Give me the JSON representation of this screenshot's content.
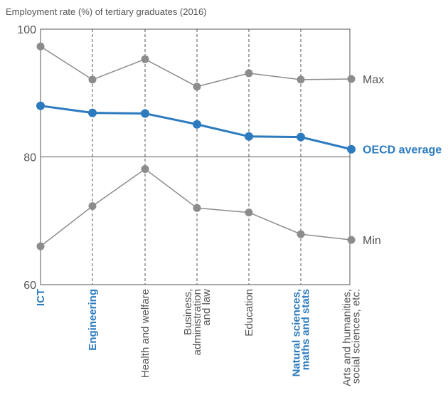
{
  "chart_data": {
    "type": "line",
    "title": "Employment rate (%) of tertiary graduates (2016)",
    "ylim": [
      60,
      100
    ],
    "yticks": [
      60,
      80,
      100
    ],
    "categories": [
      {
        "lines": [
          "ICT"
        ],
        "highlight": true
      },
      {
        "lines": [
          "Engineering"
        ],
        "highlight": true
      },
      {
        "lines": [
          "Health and welfare"
        ],
        "highlight": false
      },
      {
        "lines": [
          "Business,",
          "administration",
          "and law"
        ],
        "highlight": false
      },
      {
        "lines": [
          "Education"
        ],
        "highlight": false
      },
      {
        "lines": [
          "Natural sciences,",
          "maths and stats"
        ],
        "highlight": true
      },
      {
        "lines": [
          "Arts and humanities,",
          "social sciences, etc."
        ],
        "highlight": false
      }
    ],
    "series": [
      {
        "name": "Max",
        "color": "#8c8c8c",
        "highlight": false,
        "values": [
          97.3,
          92.1,
          95.3,
          91.0,
          93.1,
          92.1,
          92.2
        ]
      },
      {
        "name": "OECD average",
        "color": "#2c7bbf",
        "highlight": true,
        "values": [
          88.0,
          86.9,
          86.8,
          85.1,
          83.2,
          83.1,
          81.2
        ]
      },
      {
        "name": "Min",
        "color": "#8c8c8c",
        "highlight": false,
        "values": [
          66.0,
          72.3,
          78.1,
          72.0,
          71.3,
          67.9,
          67.0
        ]
      }
    ]
  }
}
